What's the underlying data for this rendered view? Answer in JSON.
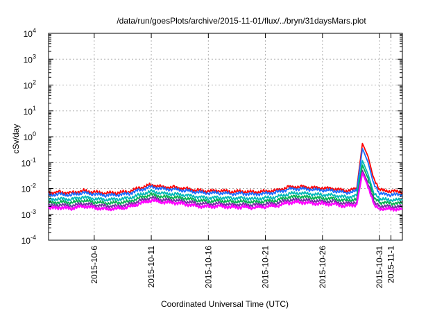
{
  "chart_data": {
    "type": "line",
    "title": "/data/run/goesPlots/archive/2015-11-01/flux/../bryn/31daysMars.plot",
    "xlabel": "Coordinated Universal Time (UTC)",
    "ylabel": "cSv/day",
    "y_scale": "log",
    "ylim": [
      0.0001,
      10000
    ],
    "y_ticks": [
      {
        "base": "10",
        "exp": "-4",
        "value": 0.0001
      },
      {
        "base": "10",
        "exp": "-3",
        "value": 0.001
      },
      {
        "base": "10",
        "exp": "-2",
        "value": 0.01
      },
      {
        "base": "10",
        "exp": "-1",
        "value": 0.1
      },
      {
        "base": "10",
        "exp": "0",
        "value": 1
      },
      {
        "base": "10",
        "exp": "1",
        "value": 10
      },
      {
        "base": "10",
        "exp": "2",
        "value": 100
      },
      {
        "base": "10",
        "exp": "3",
        "value": 1000
      },
      {
        "base": "10",
        "exp": "4",
        "value": 10000
      }
    ],
    "xlim": [
      "2015-10-02",
      "2015-11-02"
    ],
    "x_ticks": [
      "2015-10-6",
      "2015-10-11",
      "2015-10-16",
      "2015-10-21",
      "2015-10-26",
      "2015-10-31",
      "2015-11-1"
    ],
    "grid": true,
    "legend": "none",
    "x": [
      "2015-10-02",
      "2015-10-03",
      "2015-10-04",
      "2015-10-05",
      "2015-10-06",
      "2015-10-07",
      "2015-10-08",
      "2015-10-09",
      "2015-10-10",
      "2015-10-11",
      "2015-10-12",
      "2015-10-13",
      "2015-10-14",
      "2015-10-15",
      "2015-10-16",
      "2015-10-17",
      "2015-10-18",
      "2015-10-19",
      "2015-10-20",
      "2015-10-21",
      "2015-10-22",
      "2015-10-23",
      "2015-10-24",
      "2015-10-25",
      "2015-10-26",
      "2015-10-27",
      "2015-10-28",
      "2015-10-29",
      "2015-10-29T12:00",
      "2015-10-30",
      "2015-10-30T12:00",
      "2015-10-31",
      "2015-11-01",
      "2015-11-02"
    ],
    "series": [
      {
        "color": "#ff0000",
        "values": [
          0.0068,
          0.0072,
          0.0068,
          0.0082,
          0.0072,
          0.0066,
          0.0068,
          0.0075,
          0.0105,
          0.014,
          0.0115,
          0.011,
          0.01,
          0.0085,
          0.0078,
          0.0082,
          0.0075,
          0.0077,
          0.0072,
          0.0078,
          0.0085,
          0.0112,
          0.0118,
          0.0108,
          0.0102,
          0.0098,
          0.0082,
          0.0095,
          0.55,
          0.17,
          0.022,
          0.0088,
          0.0078,
          0.0075
        ]
      },
      {
        "color": "#1a6cff",
        "values": [
          0.0056,
          0.006,
          0.0056,
          0.0068,
          0.006,
          0.0055,
          0.0056,
          0.0062,
          0.0088,
          0.0118,
          0.0096,
          0.0092,
          0.0083,
          0.0071,
          0.0065,
          0.0068,
          0.0062,
          0.0064,
          0.006,
          0.0065,
          0.0071,
          0.0094,
          0.0098,
          0.009,
          0.0085,
          0.0082,
          0.0068,
          0.0079,
          0.35,
          0.1,
          0.014,
          0.0062,
          0.0058,
          0.0056
        ]
      },
      {
        "color": "#00b8b8",
        "values": [
          0.0038,
          0.004,
          0.0038,
          0.0046,
          0.004,
          0.0037,
          0.0038,
          0.0042,
          0.0058,
          0.0078,
          0.0064,
          0.0061,
          0.0055,
          0.0047,
          0.0043,
          0.0045,
          0.0042,
          0.0043,
          0.004,
          0.0043,
          0.0047,
          0.0062,
          0.0066,
          0.006,
          0.0057,
          0.0055,
          0.0046,
          0.0053,
          0.12,
          0.035,
          0.0065,
          0.0038,
          0.0036,
          0.0035
        ]
      },
      {
        "color": "#00b050",
        "values": [
          0.0028,
          0.003,
          0.0028,
          0.0034,
          0.003,
          0.0027,
          0.0028,
          0.0031,
          0.0044,
          0.0058,
          0.0048,
          0.0046,
          0.0041,
          0.0035,
          0.0032,
          0.0034,
          0.0031,
          0.0032,
          0.003,
          0.0032,
          0.0035,
          0.0046,
          0.0049,
          0.0045,
          0.0042,
          0.004,
          0.0034,
          0.0039,
          0.08,
          0.024,
          0.0045,
          0.0028,
          0.0027,
          0.0026
        ]
      },
      {
        "color": "#7030a0",
        "values": [
          0.0021,
          0.0023,
          0.0021,
          0.0026,
          0.0023,
          0.0021,
          0.0021,
          0.0024,
          0.0033,
          0.0044,
          0.0036,
          0.0035,
          0.0031,
          0.0027,
          0.0025,
          0.0026,
          0.0024,
          0.0024,
          0.0023,
          0.0025,
          0.0027,
          0.0035,
          0.0037,
          0.0034,
          0.0032,
          0.0031,
          0.0026,
          0.003,
          0.05,
          0.016,
          0.0032,
          0.0021,
          0.002,
          0.002
        ]
      },
      {
        "color": "#ff00ff",
        "values": [
          0.0017,
          0.0018,
          0.0017,
          0.0021,
          0.0018,
          0.0016,
          0.0017,
          0.0019,
          0.0026,
          0.0035,
          0.0029,
          0.0028,
          0.0025,
          0.0021,
          0.002,
          0.0021,
          0.0019,
          0.0019,
          0.0018,
          0.002,
          0.0021,
          0.0028,
          0.003,
          0.0027,
          0.0026,
          0.0025,
          0.0021,
          0.0024,
          0.04,
          0.012,
          0.0025,
          0.0017,
          0.0016,
          0.0016
        ]
      }
    ]
  }
}
